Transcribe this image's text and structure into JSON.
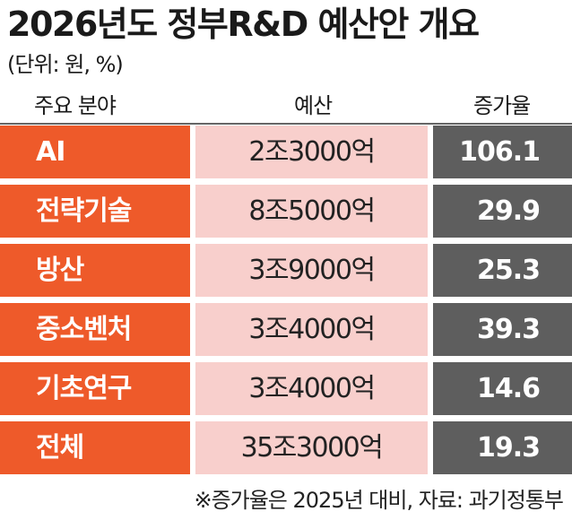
{
  "title": "2026년도 정부R&D 예산안 개요",
  "unit": "(단위: 원, %)",
  "header": {
    "area": "주요 분야",
    "budget": "예산",
    "rate": "증가율"
  },
  "rows": [
    {
      "area": "AI",
      "budget": "2조3000억",
      "rate": "106.1"
    },
    {
      "area": "전략기술",
      "budget": "8조5000억",
      "rate": "29.9"
    },
    {
      "area": "방산",
      "budget": "3조9000억",
      "rate": "25.3"
    },
    {
      "area": "중소벤처",
      "budget": "3조4000억",
      "rate": "39.3"
    },
    {
      "area": "기초연구",
      "budget": "3조4000억",
      "rate": "14.6"
    },
    {
      "area": "전체",
      "budget": "35조3000억",
      "rate": "19.3"
    }
  ],
  "footnote": "※증가율은 2025년 대비, 자료: 과기정통부",
  "colors": {
    "area_bg": "#ee5a2a",
    "budget_bg": "#f8cfcc",
    "rate_bg": "#5e5e5e"
  }
}
